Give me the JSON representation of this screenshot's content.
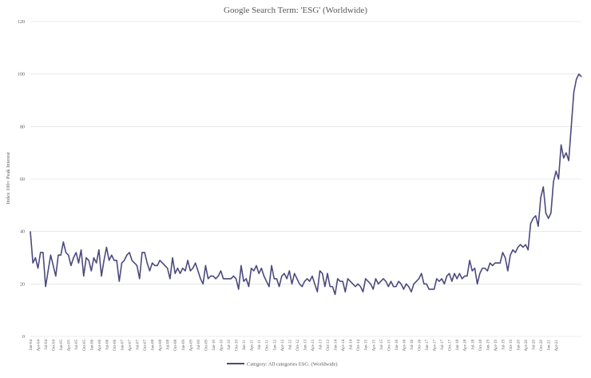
{
  "chart_data": {
    "type": "line",
    "title": "Google Search Term: 'ESG' (Worldwide)",
    "ylabel": "Index 100= Peak Interest",
    "xlabel": "",
    "ylim": [
      0,
      120
    ],
    "yticks": [
      0,
      20,
      40,
      60,
      80,
      100,
      120
    ],
    "grid": "horizontal",
    "legend_position": "bottom",
    "x_tick_labels": [
      "Jan-04",
      "Apr-04",
      "Jul-04",
      "Oct-04",
      "Jan-05",
      "Apr-05",
      "Jul-05",
      "Oct-05",
      "Jan-06",
      "Apr-06",
      "Jul-06",
      "Oct-06",
      "Jan-07",
      "Apr-07",
      "Jul-07",
      "Oct-07",
      "Jan-08",
      "Apr-08",
      "Jul-08",
      "Oct-08",
      "Jan-09",
      "Apr-09",
      "Jul-09",
      "Oct-09",
      "Jan-10",
      "Apr-10",
      "Jul-10",
      "Oct-10",
      "Jan-11",
      "Apr-11",
      "Jul-11",
      "Oct-11",
      "Jan-12",
      "Apr-12",
      "Jul-12",
      "Oct-12",
      "Jan-13",
      "Apr-13",
      "Jul-13",
      "Oct-13",
      "Jan-14",
      "Apr-14",
      "Jul-14",
      "Oct-14",
      "Jan-15",
      "Apr-15",
      "Jul-15",
      "Oct-15",
      "Jan-16",
      "Apr-16",
      "Jul-16",
      "Oct-16",
      "Jan-17",
      "Apr-17",
      "Jul-17",
      "Oct-17",
      "Jan-18",
      "Apr-18",
      "Jul-18",
      "Oct-18",
      "Jan-19",
      "Apr-19",
      "Jul-19",
      "Oct-19",
      "Jan-20",
      "Apr-20",
      "Jul-20",
      "Oct-20",
      "Jan-21",
      "Apr-21"
    ],
    "x_start": "Jan-04",
    "x_frequency": "monthly",
    "series": [
      {
        "name": "Category: All categories ESG: (Worldwide)",
        "color": "#4b4a7e",
        "values": [
          40,
          28,
          30,
          26,
          32,
          32,
          19,
          25,
          31,
          27,
          23,
          31,
          31,
          36,
          32,
          31,
          27,
          30,
          32,
          28,
          33,
          23,
          30,
          29,
          25,
          30,
          28,
          33,
          23,
          29,
          34,
          29,
          31,
          29,
          29,
          21,
          28,
          29,
          31,
          32,
          29,
          28,
          27,
          22,
          32,
          32,
          28,
          25,
          28,
          27,
          27,
          29,
          28,
          27,
          26,
          22,
          30,
          24,
          26,
          24,
          26,
          25,
          29,
          25,
          26,
          28,
          25,
          22,
          20,
          27,
          22,
          23,
          23,
          22,
          23,
          25,
          22,
          22,
          22,
          22,
          23,
          22,
          18,
          27,
          21,
          22,
          19,
          26,
          25,
          27,
          24,
          26,
          23,
          21,
          19,
          27,
          22,
          22,
          19,
          23,
          24,
          22,
          25,
          20,
          24,
          22,
          20,
          19,
          21,
          22,
          21,
          23,
          20,
          17,
          25,
          24,
          19,
          24,
          19,
          19,
          16,
          22,
          21,
          21,
          17,
          22,
          21,
          20,
          19,
          20,
          19,
          17,
          22,
          21,
          20,
          18,
          22,
          20,
          21,
          22,
          21,
          19,
          21,
          19,
          19,
          21,
          20,
          18,
          20,
          19,
          17,
          20,
          21,
          22,
          24,
          20,
          20,
          18,
          18,
          18,
          22,
          21,
          22,
          20,
          23,
          24,
          21,
          24,
          22,
          24,
          22,
          23,
          23,
          29,
          25,
          26,
          20,
          24,
          26,
          26,
          25,
          28,
          27,
          28,
          28,
          28,
          32,
          30,
          25,
          31,
          33,
          32,
          34,
          35,
          34,
          35,
          33,
          43,
          45,
          46,
          42,
          53,
          57,
          47,
          45,
          47,
          59,
          63,
          60,
          73,
          68,
          70,
          67,
          80,
          93,
          98,
          100,
          99
        ]
      }
    ]
  }
}
